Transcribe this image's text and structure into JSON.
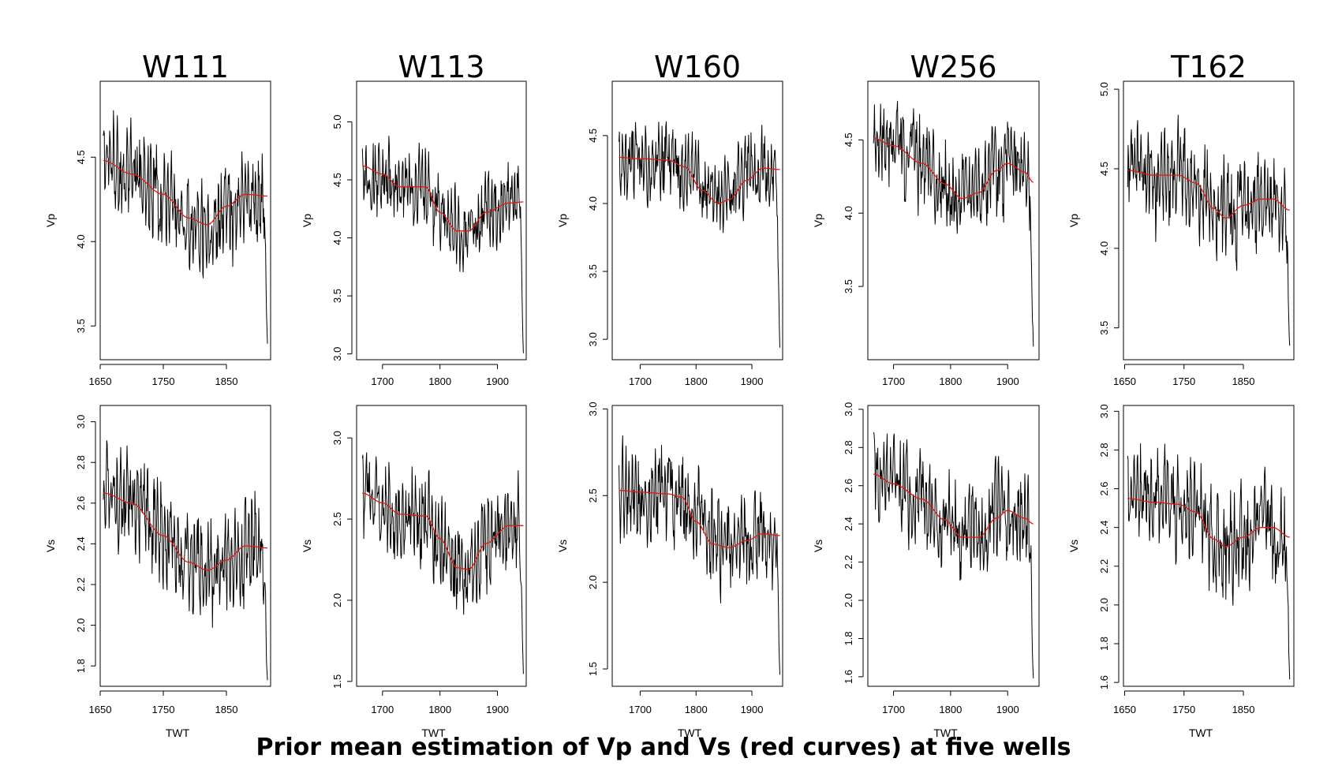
{
  "caption": "Prior mean estimation of Vp and Vs (red curves) at five wells",
  "colors": {
    "log": "#000000",
    "prior_mean": "#e8140c",
    "frame": "#000000"
  },
  "chart_data": [
    {
      "type": "line",
      "well": "W111",
      "title": "W111",
      "variable": "Vp",
      "ylabel": "Vp",
      "xlabel": "",
      "xlim": [
        1650,
        1920
      ],
      "xticks": [
        1650,
        1750,
        1850
      ],
      "ylim": [
        3.3,
        4.95
      ],
      "yticks": [
        3.5,
        4.0,
        4.5
      ],
      "log": {
        "mean": 4.3,
        "amp": 0.3,
        "end_drop": 3.38,
        "seed": 11
      },
      "series": [
        {
          "name": "prior mean",
          "x": [
            1655,
            1700,
            1750,
            1790,
            1820,
            1850,
            1880,
            1915
          ],
          "values": [
            4.48,
            4.4,
            4.28,
            4.14,
            4.1,
            4.21,
            4.28,
            4.27
          ]
        }
      ]
    },
    {
      "type": "line",
      "well": "W113",
      "title": "W113",
      "variable": "Vp",
      "ylabel": "Vp",
      "xlabel": "",
      "xlim": [
        1655,
        1950
      ],
      "xticks": [
        1700,
        1800,
        1900
      ],
      "ylim": [
        2.95,
        5.35
      ],
      "yticks": [
        3.0,
        3.5,
        4.0,
        4.5,
        5.0
      ],
      "log": {
        "mean": 4.3,
        "amp": 0.35,
        "end_drop": 3.0,
        "seed": 13
      },
      "series": [
        {
          "name": "prior mean",
          "x": [
            1665,
            1700,
            1730,
            1775,
            1800,
            1830,
            1850,
            1880,
            1920,
            1945
          ],
          "values": [
            4.62,
            4.55,
            4.44,
            4.44,
            4.22,
            4.06,
            4.06,
            4.22,
            4.3,
            4.31
          ]
        }
      ]
    },
    {
      "type": "line",
      "well": "W160",
      "title": "W160",
      "variable": "Vp",
      "ylabel": "Vp",
      "xlabel": "",
      "xlim": [
        1650,
        1955
      ],
      "xticks": [
        1700,
        1800,
        1900
      ],
      "ylim": [
        2.85,
        4.9
      ],
      "yticks": [
        3.0,
        3.5,
        4.0,
        4.5
      ],
      "log": {
        "mean": 4.2,
        "amp": 0.3,
        "end_drop": 2.92,
        "seed": 17
      },
      "series": [
        {
          "name": "prior mean",
          "x": [
            1662,
            1700,
            1750,
            1780,
            1810,
            1840,
            1860,
            1890,
            1920,
            1950
          ],
          "values": [
            4.34,
            4.33,
            4.32,
            4.27,
            4.1,
            4.0,
            4.03,
            4.17,
            4.26,
            4.25
          ]
        }
      ]
    },
    {
      "type": "line",
      "well": "W256",
      "title": "W256",
      "variable": "Vp",
      "ylabel": "Vp",
      "xlabel": "",
      "xlim": [
        1655,
        1955
      ],
      "xticks": [
        1700,
        1800,
        1900
      ],
      "ylim": [
        3.0,
        4.9
      ],
      "yticks": [
        3.5,
        4.0,
        4.5
      ],
      "log": {
        "mean": 4.25,
        "amp": 0.32,
        "end_drop": 3.08,
        "seed": 19
      },
      "series": [
        {
          "name": "prior mean",
          "x": [
            1665,
            1700,
            1750,
            1790,
            1820,
            1850,
            1880,
            1900,
            1930,
            1945
          ],
          "values": [
            4.51,
            4.46,
            4.34,
            4.2,
            4.1,
            4.14,
            4.29,
            4.34,
            4.28,
            4.21
          ]
        }
      ]
    },
    {
      "type": "line",
      "well": "T162",
      "title": "T162",
      "variable": "Vp",
      "ylabel": "Vp",
      "xlabel": "",
      "xlim": [
        1648,
        1935
      ],
      "xticks": [
        1650,
        1750,
        1850
      ],
      "ylim": [
        3.3,
        5.05
      ],
      "yticks": [
        3.5,
        4.0,
        4.5,
        5.0
      ],
      "log": {
        "mean": 4.35,
        "amp": 0.32,
        "end_drop": 3.37,
        "seed": 23
      },
      "series": [
        {
          "name": "prior mean",
          "x": [
            1655,
            1700,
            1740,
            1770,
            1800,
            1820,
            1850,
            1880,
            1900,
            1928
          ],
          "values": [
            4.49,
            4.46,
            4.46,
            4.41,
            4.25,
            4.19,
            4.27,
            4.31,
            4.31,
            4.24
          ]
        }
      ]
    },
    {
      "type": "line",
      "well": "W111",
      "variable": "Vs",
      "ylabel": "Vs",
      "xlabel": "TWT",
      "xlim": [
        1650,
        1920
      ],
      "xticks": [
        1650,
        1750,
        1850
      ],
      "ylim": [
        1.7,
        3.08
      ],
      "yticks": [
        1.8,
        2.0,
        2.2,
        2.4,
        2.6,
        2.8,
        3.0
      ],
      "log": {
        "mean": 2.48,
        "amp": 0.27,
        "end_drop": 1.73,
        "seed": 29
      },
      "series": [
        {
          "name": "prior mean",
          "x": [
            1655,
            1700,
            1750,
            1790,
            1820,
            1850,
            1880,
            1915
          ],
          "values": [
            2.65,
            2.6,
            2.44,
            2.31,
            2.27,
            2.32,
            2.39,
            2.38
          ]
        }
      ]
    },
    {
      "type": "line",
      "well": "W113",
      "variable": "Vs",
      "ylabel": "Vs",
      "xlabel": "TWT",
      "xlim": [
        1655,
        1950
      ],
      "xticks": [
        1700,
        1800,
        1900
      ],
      "ylim": [
        1.47,
        3.2
      ],
      "yticks": [
        1.5,
        2.0,
        2.5,
        3.0
      ],
      "log": {
        "mean": 2.45,
        "amp": 0.3,
        "end_drop": 1.55,
        "seed": 31
      },
      "series": [
        {
          "name": "prior mean",
          "x": [
            1665,
            1700,
            1730,
            1775,
            1800,
            1830,
            1850,
            1880,
            1920,
            1945
          ],
          "values": [
            2.66,
            2.6,
            2.53,
            2.52,
            2.38,
            2.2,
            2.19,
            2.35,
            2.46,
            2.46
          ]
        }
      ]
    },
    {
      "type": "line",
      "well": "W160",
      "variable": "Vs",
      "ylabel": "Vs",
      "xlabel": "TWT",
      "xlim": [
        1650,
        1955
      ],
      "xticks": [
        1700,
        1800,
        1900
      ],
      "ylim": [
        1.4,
        3.02
      ],
      "yticks": [
        1.5,
        2.0,
        2.5,
        3.0
      ],
      "log": {
        "mean": 2.4,
        "amp": 0.28,
        "end_drop": 1.46,
        "seed": 37
      },
      "series": [
        {
          "name": "prior mean",
          "x": [
            1662,
            1700,
            1750,
            1775,
            1800,
            1830,
            1860,
            1890,
            1920,
            1950
          ],
          "values": [
            2.53,
            2.52,
            2.51,
            2.49,
            2.35,
            2.22,
            2.2,
            2.24,
            2.28,
            2.27
          ]
        }
      ]
    },
    {
      "type": "line",
      "well": "W256",
      "variable": "Vs",
      "ylabel": "Vs",
      "xlabel": "TWT",
      "xlim": [
        1655,
        1955
      ],
      "xticks": [
        1700,
        1800,
        1900
      ],
      "ylim": [
        1.55,
        3.02
      ],
      "yticks": [
        1.6,
        1.8,
        2.0,
        2.2,
        2.4,
        2.6,
        2.8,
        3.0
      ],
      "log": {
        "mean": 2.48,
        "amp": 0.27,
        "end_drop": 1.58,
        "seed": 41
      },
      "series": [
        {
          "name": "prior mean",
          "x": [
            1665,
            1700,
            1750,
            1790,
            1820,
            1850,
            1880,
            1900,
            1930,
            1945
          ],
          "values": [
            2.66,
            2.61,
            2.53,
            2.42,
            2.33,
            2.33,
            2.43,
            2.47,
            2.43,
            2.4
          ]
        }
      ]
    },
    {
      "type": "line",
      "well": "T162",
      "variable": "Vs",
      "ylabel": "Vs",
      "xlabel": "TWT",
      "xlim": [
        1648,
        1935
      ],
      "xticks": [
        1650,
        1750,
        1850
      ],
      "ylim": [
        1.58,
        3.03
      ],
      "yticks": [
        1.6,
        1.8,
        2.0,
        2.2,
        2.4,
        2.6,
        2.8,
        3.0
      ],
      "log": {
        "mean": 2.48,
        "amp": 0.28,
        "end_drop": 1.63,
        "seed": 43
      },
      "series": [
        {
          "name": "prior mean",
          "x": [
            1655,
            1700,
            1740,
            1770,
            1800,
            1820,
            1850,
            1880,
            1900,
            1928
          ],
          "values": [
            2.55,
            2.53,
            2.52,
            2.48,
            2.34,
            2.3,
            2.35,
            2.4,
            2.4,
            2.35
          ]
        }
      ]
    }
  ]
}
